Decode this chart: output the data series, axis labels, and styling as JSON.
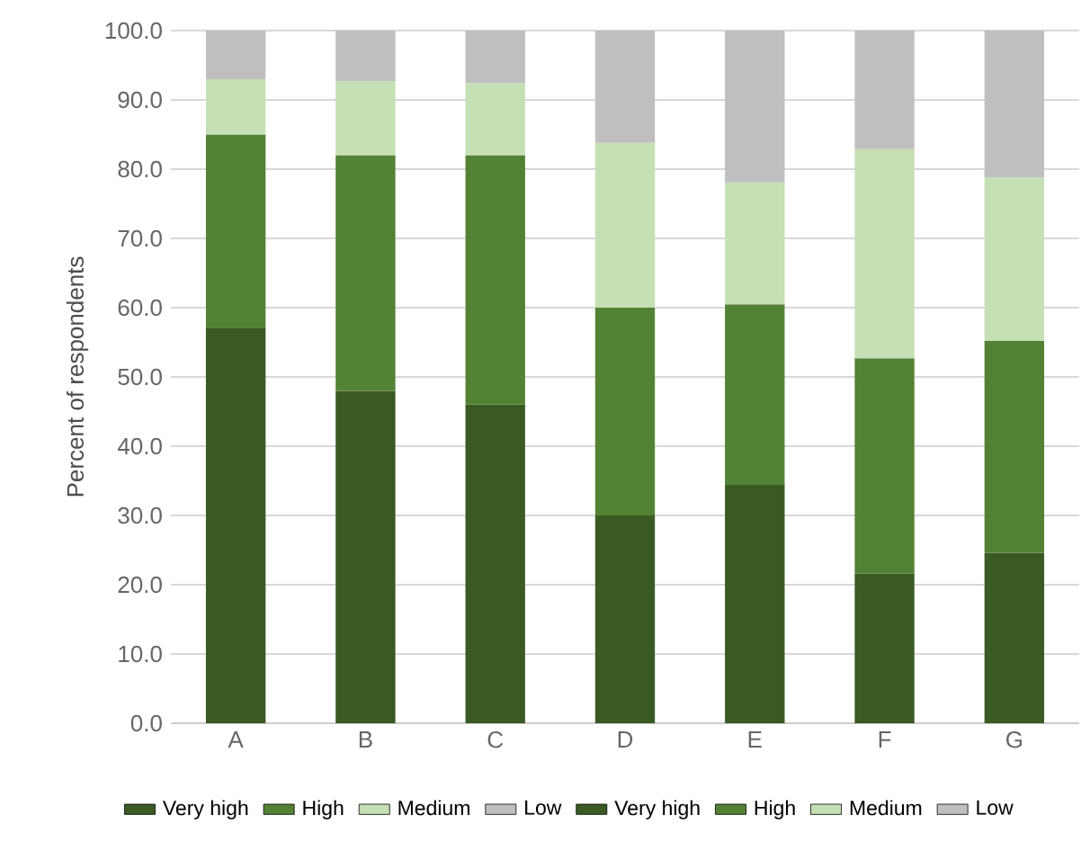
{
  "chart_data": {
    "type": "bar",
    "stacked": true,
    "ylabel": "Percent of respondents",
    "categories": [
      "A",
      "B",
      "C",
      "D",
      "E",
      "F",
      "G"
    ],
    "series": [
      {
        "name": "Very high",
        "color": "#3a5a24",
        "values": [
          57,
          48,
          46,
          30,
          34.4,
          21.6,
          null
        ]
      },
      {
        "name": "High",
        "color": "#548235",
        "values": [
          28,
          34,
          36,
          30,
          26.1,
          31.1,
          null
        ]
      },
      {
        "name": "Medium",
        "color": "#c5e0b4",
        "values": [
          8,
          10.7,
          10.4,
          23.8,
          17.6,
          30.2,
          null
        ]
      },
      {
        "name": "Low",
        "color": "#bfbfbf",
        "values": [
          7,
          7.3,
          7.6,
          16.2,
          21.9,
          17.1,
          null
        ]
      },
      {
        "name": "Very high",
        "color": "#3a5a24",
        "values": [
          null,
          null,
          null,
          null,
          null,
          null,
          24.6
        ]
      },
      {
        "name": "High",
        "color": "#548235",
        "values": [
          null,
          null,
          null,
          null,
          null,
          null,
          30.6
        ]
      },
      {
        "name": "Medium",
        "color": "#c5e0b4",
        "values": [
          null,
          null,
          null,
          null,
          null,
          null,
          23.6
        ]
      },
      {
        "name": "Low",
        "color": "#bfbfbf",
        "values": [
          null,
          null,
          null,
          null,
          null,
          null,
          21.2
        ]
      }
    ],
    "ylim": [
      0,
      100
    ],
    "yticks": [
      {
        "value": 0,
        "label": "0.0"
      },
      {
        "value": 10,
        "label": "10.0"
      },
      {
        "value": 20,
        "label": "20.0"
      },
      {
        "value": 30,
        "label": "30.0"
      },
      {
        "value": 40,
        "label": "40.0"
      },
      {
        "value": 50,
        "label": "50.0"
      },
      {
        "value": 60,
        "label": "60.0"
      },
      {
        "value": 70,
        "label": "70.0"
      },
      {
        "value": 80,
        "label": "80.0"
      },
      {
        "value": 90,
        "label": "90.0"
      },
      {
        "value": 100,
        "label": "100.0"
      }
    ],
    "grid": "y",
    "legend": "bottom"
  }
}
